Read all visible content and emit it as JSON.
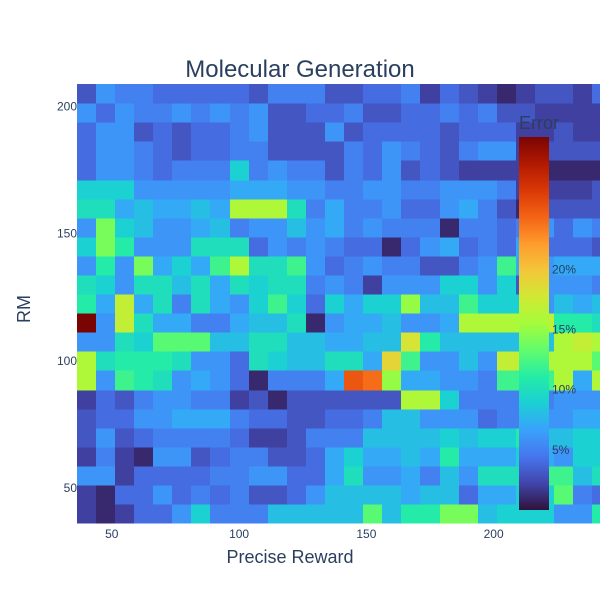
{
  "chart_data": {
    "type": "heatmap",
    "title": "Molecular Generation",
    "xlabel": "Precise Reward",
    "ylabel": "RM",
    "x_range": [
      37.5,
      202.5
    ],
    "y_range": [
      37.5,
      202.5
    ],
    "x_start": 40,
    "y_start": 40,
    "step": 7.5,
    "xticks": [
      50,
      100,
      150,
      200
    ],
    "yticks": [
      50,
      100,
      150,
      200
    ],
    "colorbar": {
      "title": "Error",
      "range": [
        0,
        0.31
      ],
      "tick_values": [
        0.05,
        0.1,
        0.15,
        0.2
      ],
      "tick_labels": [
        "5%",
        "10%",
        "15%",
        "20%"
      ],
      "colorscale": [
        "#30123b",
        "#4145ab",
        "#4675ed",
        "#39a2fc",
        "#1bcfd4",
        "#24eca6",
        "#61fc6c",
        "#a4fc3b",
        "#d1e834",
        "#f3c63a",
        "#fe9b2d",
        "#f36315",
        "#d93806",
        "#b11901",
        "#7a0402"
      ]
    },
    "z": [
      [
        0.02,
        0.01,
        0.02,
        0.04,
        0.04,
        0.06,
        0.09,
        0.05,
        0.05,
        0.05,
        0.08,
        0.08,
        0.08,
        0.08,
        0.08,
        0.13,
        0.08,
        0.11,
        0.11,
        0.14,
        0.14,
        0.08,
        0.09,
        0.09,
        0.09,
        0.06,
        0.06,
        0.11,
        0.13,
        0.13,
        0.09,
        0.09
      ],
      [
        0.02,
        0.01,
        0.04,
        0.04,
        0.06,
        0.04,
        0.05,
        0.04,
        0.05,
        0.03,
        0.03,
        0.04,
        0.06,
        0.08,
        0.08,
        0.08,
        0.08,
        0.07,
        0.08,
        0.08,
        0.04,
        0.07,
        0.07,
        0.09,
        0.09,
        0.13,
        0.05,
        0.04,
        0.05,
        0.06,
        0.07,
        0.07
      ],
      [
        0.06,
        0.06,
        0.02,
        0.04,
        0.04,
        0.04,
        0.04,
        0.05,
        0.05,
        0.06,
        0.06,
        0.04,
        0.04,
        0.07,
        0.1,
        0.06,
        0.06,
        0.07,
        0.05,
        0.08,
        0.06,
        0.1,
        0.1,
        0.1,
        0.12,
        0.12,
        0.08,
        0.1,
        0.08,
        0.08,
        0.07,
        0.07
      ],
      [
        0.02,
        0.05,
        0.02,
        0.01,
        0.06,
        0.06,
        0.03,
        0.04,
        0.05,
        0.05,
        0.03,
        0.03,
        0.04,
        0.07,
        0.09,
        0.07,
        0.07,
        0.08,
        0.07,
        0.11,
        0.07,
        0.07,
        0.07,
        0.09,
        0.07,
        0.06,
        0.09,
        0.09,
        0.1,
        0.08,
        0.09,
        0.08
      ],
      [
        0.03,
        0.06,
        0.03,
        0.04,
        0.05,
        0.05,
        0.05,
        0.05,
        0.04,
        0.02,
        0.02,
        0.03,
        0.05,
        0.05,
        0.05,
        0.08,
        0.08,
        0.08,
        0.08,
        0.09,
        0.08,
        0.09,
        0.09,
        0.11,
        0.08,
        0.08,
        0.09,
        0.09,
        0.09,
        0.1,
        0.07,
        0.08
      ],
      [
        0.03,
        0.04,
        0.04,
        0.06,
        0.06,
        0.07,
        0.07,
        0.07,
        0.05,
        0.04,
        0.04,
        0.03,
        0.03,
        0.04,
        0.04,
        0.05,
        0.08,
        0.08,
        0.06,
        0.06,
        0.06,
        0.04,
        0.05,
        0.05,
        0.06,
        0.06,
        0.07,
        0.07,
        0.08,
        0.05,
        0.05,
        0.04
      ],
      [
        0.02,
        0.04,
        0.03,
        0.05,
        0.06,
        0.06,
        0.05,
        0.05,
        0.02,
        0.03,
        0.01,
        0.03,
        0.03,
        0.03,
        0.03,
        0.03,
        0.03,
        0.16,
        0.16,
        0.09,
        0.05,
        0.05,
        0.05,
        0.05,
        0.05,
        0.06,
        0.06,
        0.06,
        0.05,
        0.05,
        0.06,
        0.04
      ],
      [
        0.16,
        0.06,
        0.12,
        0.11,
        0.1,
        0.06,
        0.07,
        0.06,
        0.04,
        0.01,
        0.05,
        0.05,
        0.05,
        0.07,
        0.25,
        0.24,
        0.15,
        0.07,
        0.07,
        0.06,
        0.06,
        0.05,
        0.12,
        0.12,
        0.12,
        0.16,
        0.07,
        0.16,
        0.16,
        0.16,
        0.16,
        0.13
      ],
      [
        0.16,
        0.1,
        0.11,
        0.11,
        0.11,
        0.1,
        0.06,
        0.06,
        0.04,
        0.1,
        0.09,
        0.08,
        0.08,
        0.1,
        0.1,
        0.07,
        0.19,
        0.12,
        0.06,
        0.06,
        0.08,
        0.06,
        0.17,
        0.17,
        0.16,
        0.16,
        0.16,
        0.13,
        0.08,
        0.13,
        0.13,
        0.13
      ],
      [
        0.06,
        0.06,
        0.1,
        0.09,
        0.13,
        0.13,
        0.13,
        0.08,
        0.08,
        0.1,
        0.1,
        0.08,
        0.08,
        0.07,
        0.07,
        0.08,
        0.08,
        0.18,
        0.11,
        0.08,
        0.08,
        0.08,
        0.08,
        0.08,
        0.08,
        0.16,
        0.17,
        0.16,
        0.08,
        0.1,
        0.1,
        0.17
      ],
      [
        0.31,
        0.06,
        0.17,
        0.1,
        0.07,
        0.07,
        0.05,
        0.05,
        0.07,
        0.08,
        0.08,
        0.1,
        0.01,
        0.06,
        0.07,
        0.07,
        0.08,
        0.06,
        0.06,
        0.07,
        0.16,
        0.16,
        0.16,
        0.16,
        0.17,
        0.11,
        0.11,
        0.1,
        0.1,
        0.1,
        0.1,
        0.11
      ],
      [
        0.11,
        0.07,
        0.17,
        0.07,
        0.1,
        0.05,
        0.1,
        0.07,
        0.06,
        0.09,
        0.12,
        0.09,
        0.04,
        0.09,
        0.07,
        0.09,
        0.09,
        0.15,
        0.08,
        0.08,
        0.12,
        0.09,
        0.09,
        0.09,
        0.06,
        0.08,
        0.07,
        0.08,
        0.08,
        0.08,
        0.07,
        0.07
      ],
      [
        0.1,
        0.09,
        0.06,
        0.1,
        0.1,
        0.08,
        0.1,
        0.07,
        0.1,
        0.09,
        0.1,
        0.1,
        0.05,
        0.06,
        0.05,
        0.02,
        0.06,
        0.06,
        0.06,
        0.09,
        0.09,
        0.06,
        0.09,
        0.03,
        0.06,
        0.06,
        0.06,
        0.05,
        0.05,
        0.05,
        0.06,
        0.05
      ],
      [
        0.06,
        0.11,
        0.06,
        0.14,
        0.07,
        0.09,
        0.07,
        0.12,
        0.16,
        0.1,
        0.1,
        0.12,
        0.06,
        0.04,
        0.05,
        0.06,
        0.05,
        0.05,
        0.03,
        0.03,
        0.05,
        0.06,
        0.12,
        0.07,
        0.06,
        0.07,
        0.07,
        0.07,
        0.08,
        0.08,
        0.06,
        0.06
      ],
      [
        0.09,
        0.14,
        0.11,
        0.06,
        0.06,
        0.06,
        0.1,
        0.1,
        0.1,
        0.04,
        0.06,
        0.05,
        0.06,
        0.05,
        0.04,
        0.04,
        0.01,
        0.04,
        0.06,
        0.07,
        0.04,
        0.05,
        0.04,
        0.07,
        0.04,
        0.04,
        0.04,
        0.03,
        0.03,
        0.03,
        0.05,
        0.05
      ],
      [
        0.06,
        0.14,
        0.09,
        0.08,
        0.06,
        0.06,
        0.07,
        0.08,
        0.05,
        0.06,
        0.06,
        0.08,
        0.06,
        0.07,
        0.05,
        0.06,
        0.05,
        0.05,
        0.05,
        0.01,
        0.05,
        0.05,
        0.04,
        0.05,
        0.06,
        0.04,
        0.06,
        0.05,
        0.04,
        0.03,
        0.04,
        0.04
      ],
      [
        0.1,
        0.1,
        0.07,
        0.08,
        0.07,
        0.07,
        0.08,
        0.07,
        0.16,
        0.16,
        0.16,
        0.1,
        0.05,
        0.07,
        0.05,
        0.05,
        0.06,
        0.04,
        0.04,
        0.06,
        0.07,
        0.05,
        0.03,
        0.01,
        0.03,
        0.03,
        0.03,
        0.03,
        0.02,
        0.03,
        0.03,
        0.05
      ],
      [
        0.09,
        0.09,
        0.09,
        0.06,
        0.06,
        0.06,
        0.06,
        0.06,
        0.07,
        0.07,
        0.07,
        0.06,
        0.06,
        0.05,
        0.05,
        0.06,
        0.06,
        0.05,
        0.05,
        0.06,
        0.06,
        0.06,
        0.05,
        0.02,
        0.02,
        0.02,
        0.02,
        0.03,
        0.03,
        0.03,
        0.04,
        0.05
      ],
      [
        0.04,
        0.06,
        0.06,
        0.05,
        0.04,
        0.05,
        0.05,
        0.05,
        0.09,
        0.05,
        0.06,
        0.05,
        0.05,
        0.03,
        0.05,
        0.04,
        0.06,
        0.03,
        0.04,
        0.03,
        0.02,
        0.02,
        0.02,
        0.02,
        0.01,
        0.01,
        0.01,
        0.01,
        0.02,
        0.03,
        0.04,
        0.02
      ],
      [
        0.04,
        0.06,
        0.06,
        0.05,
        0.04,
        0.03,
        0.04,
        0.04,
        0.05,
        0.05,
        0.03,
        0.03,
        0.03,
        0.03,
        0.05,
        0.04,
        0.06,
        0.05,
        0.04,
        0.03,
        0.05,
        0.06,
        0.06,
        0.02,
        0.03,
        0.03,
        0.03,
        0.03,
        0.03,
        0.04,
        0.04,
        0.03
      ],
      [
        0.04,
        0.06,
        0.06,
        0.03,
        0.04,
        0.03,
        0.04,
        0.04,
        0.05,
        0.06,
        0.03,
        0.03,
        0.03,
        0.06,
        0.03,
        0.04,
        0.04,
        0.04,
        0.04,
        0.03,
        0.04,
        0.04,
        0.04,
        0.02,
        0.02,
        0.03,
        0.02,
        0.02,
        0.02,
        0.02,
        0.03,
        0.04
      ],
      [
        0.06,
        0.04,
        0.06,
        0.05,
        0.05,
        0.06,
        0.05,
        0.06,
        0.05,
        0.06,
        0.03,
        0.03,
        0.04,
        0.04,
        0.05,
        0.03,
        0.03,
        0.04,
        0.04,
        0.05,
        0.04,
        0.05,
        0.03,
        0.03,
        0.02,
        0.02,
        0.02,
        0.02,
        0.02,
        0.02,
        0.03,
        0.03
      ],
      [
        0.03,
        0.06,
        0.05,
        0.05,
        0.04,
        0.04,
        0.04,
        0.04,
        0.04,
        0.03,
        0.05,
        0.05,
        0.05,
        0.03,
        0.03,
        0.04,
        0.04,
        0.05,
        0.02,
        0.04,
        0.03,
        0.02,
        0.01,
        0.02,
        0.03,
        0.03,
        0.02,
        0.04,
        0.02,
        0.04,
        0.01,
        0.01
      ]
    ]
  }
}
